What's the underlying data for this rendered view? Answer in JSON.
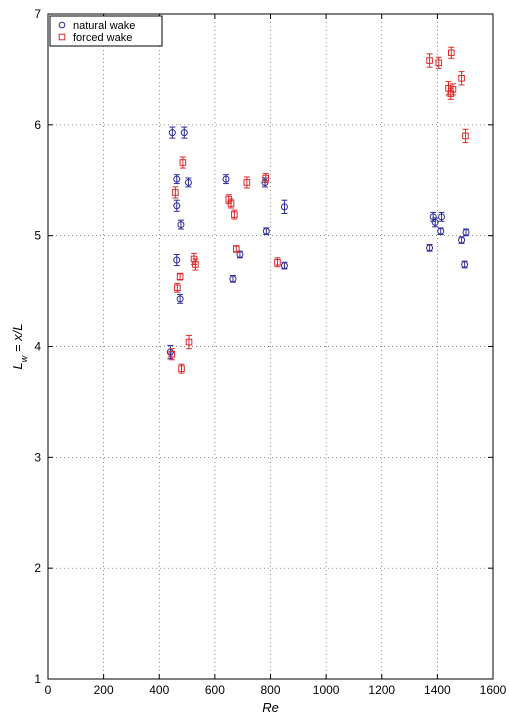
{
  "chart_data": {
    "type": "scatter",
    "title": "",
    "xlabel": "Re",
    "ylabel_parts": {
      "main": "L",
      "sub": "w",
      "tail": " = x/L"
    },
    "xlim": [
      0,
      1600
    ],
    "ylim": [
      1,
      7
    ],
    "xticks": [
      0,
      200,
      400,
      600,
      800,
      1000,
      1200,
      1400,
      1600
    ],
    "yticks": [
      1,
      2,
      3,
      4,
      5,
      6,
      7
    ],
    "grid": true,
    "grid_style": "dotted",
    "legend_position": "top-left",
    "series": [
      {
        "name": "natural wake",
        "marker": "circle",
        "color": "#2b2b9a",
        "points": [
          {
            "x": 447,
            "y": 5.93,
            "err": 0.05
          },
          {
            "x": 490,
            "y": 5.93,
            "err": 0.05
          },
          {
            "x": 463,
            "y": 5.51,
            "err": 0.04
          },
          {
            "x": 505,
            "y": 5.48,
            "err": 0.04
          },
          {
            "x": 463,
            "y": 5.27,
            "err": 0.05
          },
          {
            "x": 478,
            "y": 5.1,
            "err": 0.04
          },
          {
            "x": 463,
            "y": 4.78,
            "err": 0.05
          },
          {
            "x": 475,
            "y": 4.43,
            "err": 0.04
          },
          {
            "x": 440,
            "y": 3.95,
            "err": 0.06
          },
          {
            "x": 640,
            "y": 5.51,
            "err": 0.04
          },
          {
            "x": 780,
            "y": 5.48,
            "err": 0.04
          },
          {
            "x": 785,
            "y": 5.04,
            "err": 0.03
          },
          {
            "x": 690,
            "y": 4.83,
            "err": 0.03
          },
          {
            "x": 665,
            "y": 4.61,
            "err": 0.03
          },
          {
            "x": 850,
            "y": 5.26,
            "err": 0.06
          },
          {
            "x": 850,
            "y": 4.73,
            "err": 0.03
          },
          {
            "x": 1385,
            "y": 5.17,
            "err": 0.04
          },
          {
            "x": 1415,
            "y": 5.17,
            "err": 0.04
          },
          {
            "x": 1392,
            "y": 5.12,
            "err": 0.04
          },
          {
            "x": 1412,
            "y": 5.04,
            "err": 0.03
          },
          {
            "x": 1372,
            "y": 4.89,
            "err": 0.03
          },
          {
            "x": 1487,
            "y": 4.96,
            "err": 0.03
          },
          {
            "x": 1503,
            "y": 5.03,
            "err": 0.03
          },
          {
            "x": 1498,
            "y": 4.74,
            "err": 0.03
          }
        ]
      },
      {
        "name": "forced wake",
        "marker": "square",
        "color": "#dc2a2a",
        "points": [
          {
            "x": 485,
            "y": 5.66,
            "err": 0.05
          },
          {
            "x": 458,
            "y": 5.39,
            "err": 0.05
          },
          {
            "x": 525,
            "y": 4.79,
            "err": 0.05
          },
          {
            "x": 530,
            "y": 4.74,
            "err": 0.05
          },
          {
            "x": 475,
            "y": 4.63,
            "err": 0.03
          },
          {
            "x": 465,
            "y": 4.53,
            "err": 0.04
          },
          {
            "x": 507,
            "y": 4.04,
            "err": 0.06
          },
          {
            "x": 445,
            "y": 3.93,
            "err": 0.05
          },
          {
            "x": 480,
            "y": 3.8,
            "err": 0.04
          },
          {
            "x": 715,
            "y": 5.48,
            "err": 0.05
          },
          {
            "x": 783,
            "y": 5.52,
            "err": 0.04
          },
          {
            "x": 650,
            "y": 5.33,
            "err": 0.04
          },
          {
            "x": 658,
            "y": 5.29,
            "err": 0.04
          },
          {
            "x": 670,
            "y": 5.19,
            "err": 0.04
          },
          {
            "x": 677,
            "y": 4.88,
            "err": 0.03
          },
          {
            "x": 825,
            "y": 4.76,
            "err": 0.04
          },
          {
            "x": 1372,
            "y": 6.58,
            "err": 0.06
          },
          {
            "x": 1405,
            "y": 6.56,
            "err": 0.05
          },
          {
            "x": 1450,
            "y": 6.65,
            "err": 0.05
          },
          {
            "x": 1440,
            "y": 6.33,
            "err": 0.06
          },
          {
            "x": 1448,
            "y": 6.28,
            "err": 0.05
          },
          {
            "x": 1456,
            "y": 6.32,
            "err": 0.05
          },
          {
            "x": 1487,
            "y": 6.42,
            "err": 0.06
          },
          {
            "x": 1501,
            "y": 5.9,
            "err": 0.06
          }
        ]
      }
    ]
  }
}
